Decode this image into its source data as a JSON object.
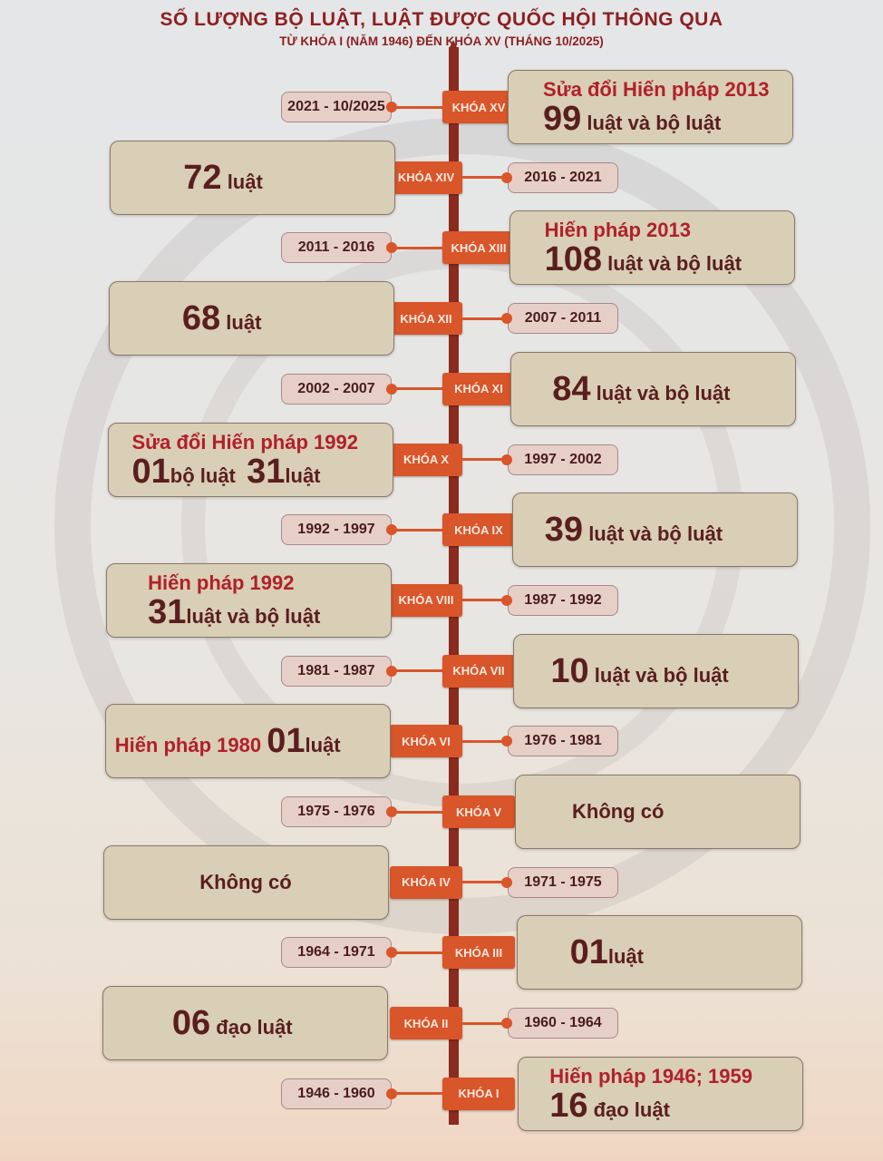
{
  "title": "SỐ LƯỢNG BỘ LUẬT, LUẬT ĐƯỢC QUỐC HỘI THÔNG QUA",
  "subtitle": "TỪ KHÓA I (NĂM 1946) ĐẾN KHÓA XV (THÁNG 10/2025)",
  "colors": {
    "khoa": "#d9552a",
    "spine": "#8b2a1e",
    "heading": "#b0202a",
    "text": "#5a1e1e",
    "box": "#d9ceb6",
    "period": "#e6cfc7"
  },
  "rows": [
    {
      "khoa": "KHÓA XV",
      "period": "2021 - 10/2025",
      "lines": [
        [
          {
            "t": "Sửa đổi Hiến pháp 2013",
            "s": "heading"
          }
        ],
        [
          {
            "t": "99",
            "s": "num"
          },
          {
            "t": " luật và bộ luật",
            "s": "unit"
          }
        ]
      ]
    },
    {
      "khoa": "KHÓA XIV",
      "period": "2016 - 2021",
      "lines": [
        [
          {
            "t": "72",
            "s": "num"
          },
          {
            "t": " luật",
            "s": "unit"
          }
        ]
      ]
    },
    {
      "khoa": "KHÓA XIII",
      "period": "2011 - 2016",
      "lines": [
        [
          {
            "t": "Hiến pháp 2013",
            "s": "heading"
          }
        ],
        [
          {
            "t": "108",
            "s": "num"
          },
          {
            "t": " luật và bộ luật",
            "s": "unit"
          }
        ]
      ]
    },
    {
      "khoa": "KHÓA XII",
      "period": "2007 - 2011",
      "lines": [
        [
          {
            "t": "68",
            "s": "num"
          },
          {
            "t": " luật",
            "s": "unit"
          }
        ]
      ]
    },
    {
      "khoa": "KHÓA XI",
      "period": "2002 - 2007",
      "lines": [
        [
          {
            "t": "84",
            "s": "num"
          },
          {
            "t": " luật và bộ luật",
            "s": "unit"
          }
        ]
      ]
    },
    {
      "khoa": "KHÓA X",
      "period": "1997 - 2002",
      "lines": [
        [
          {
            "t": "Sửa đổi Hiến pháp 1992",
            "s": "heading"
          }
        ],
        [
          {
            "t": "01",
            "s": "num"
          },
          {
            "t": "bộ luật  ",
            "s": "unit"
          },
          {
            "t": "31",
            "s": "num"
          },
          {
            "t": "luật",
            "s": "unit"
          }
        ]
      ]
    },
    {
      "khoa": "KHÓA IX",
      "period": "1992 - 1997",
      "lines": [
        [
          {
            "t": "39",
            "s": "num"
          },
          {
            "t": " luật và bộ luật",
            "s": "unit"
          }
        ]
      ]
    },
    {
      "khoa": "KHÓA VIII",
      "period": "1987 - 1992",
      "lines": [
        [
          {
            "t": "Hiến pháp 1992",
            "s": "heading"
          }
        ],
        [
          {
            "t": "31",
            "s": "num"
          },
          {
            "t": "luật và bộ luật",
            "s": "unit"
          }
        ]
      ]
    },
    {
      "khoa": "KHÓA VII",
      "period": "1981 - 1987",
      "lines": [
        [
          {
            "t": "10",
            "s": "num"
          },
          {
            "t": " luật và bộ luật",
            "s": "unit"
          }
        ]
      ]
    },
    {
      "khoa": "KHÓA VI",
      "period": "1976 - 1981",
      "lines": [
        [
          {
            "t": "Hiến pháp 1980 ",
            "s": "heading"
          },
          {
            "t": "01",
            "s": "num"
          },
          {
            "t": "luật",
            "s": "unit"
          }
        ]
      ]
    },
    {
      "khoa": "KHÓA V",
      "period": "1975 - 1976",
      "lines": [
        [
          {
            "t": "Không có",
            "s": "plain"
          }
        ]
      ]
    },
    {
      "khoa": "KHÓA IV",
      "period": "1971 - 1975",
      "lines": [
        [
          {
            "t": "Không có",
            "s": "plain"
          }
        ]
      ]
    },
    {
      "khoa": "KHÓA III",
      "period": "1964 - 1971",
      "lines": [
        [
          {
            "t": "01",
            "s": "num"
          },
          {
            "t": "luật",
            "s": "unit"
          }
        ]
      ]
    },
    {
      "khoa": "KHÓA II",
      "period": "1960 - 1964",
      "lines": [
        [
          {
            "t": "06",
            "s": "num"
          },
          {
            "t": " đạo luật",
            "s": "unit"
          }
        ]
      ]
    },
    {
      "khoa": "KHÓA I",
      "period": "1946 - 1960",
      "lines": [
        [
          {
            "t": "Hiến pháp 1946; 1959",
            "s": "heading"
          }
        ],
        [
          {
            "t": "16",
            "s": "num"
          },
          {
            "t": " đạo luật",
            "s": "unit"
          }
        ]
      ]
    }
  ]
}
